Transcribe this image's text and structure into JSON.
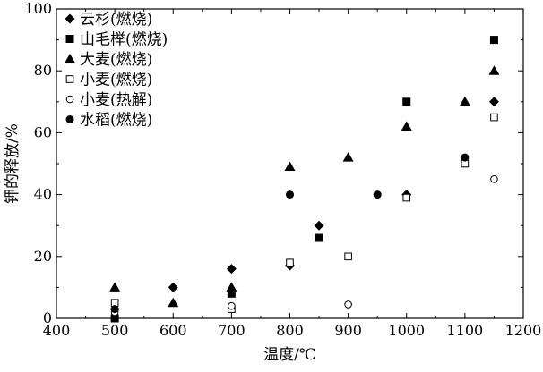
{
  "chart_data": {
    "type": "scatter",
    "xlabel": "温度/℃",
    "ylabel": "钾的释放/%",
    "xlim": [
      400,
      1200
    ],
    "ylim": [
      0,
      100
    ],
    "xticks": [
      400,
      500,
      600,
      700,
      800,
      900,
      1000,
      1100,
      1200
    ],
    "yticks": [
      0,
      20,
      40,
      60,
      80,
      100
    ],
    "grid": false,
    "legend_position": "top-left",
    "series": [
      {
        "name": "云杉(燃烧)",
        "marker": "diamond-filled",
        "points": [
          [
            500,
            3
          ],
          [
            600,
            10
          ],
          [
            700,
            16
          ],
          [
            800,
            17
          ],
          [
            850,
            30
          ],
          [
            1000,
            40
          ],
          [
            1150,
            70
          ]
        ]
      },
      {
        "name": "山毛榉(燃烧)",
        "marker": "square-filled",
        "points": [
          [
            500,
            0
          ],
          [
            700,
            8
          ],
          [
            850,
            26
          ],
          [
            1000,
            70
          ],
          [
            1150,
            90
          ]
        ]
      },
      {
        "name": "大麦(燃烧)",
        "marker": "triangle-filled",
        "points": [
          [
            500,
            10
          ],
          [
            600,
            5
          ],
          [
            700,
            10
          ],
          [
            800,
            49
          ],
          [
            900,
            52
          ],
          [
            1000,
            62
          ],
          [
            1100,
            70
          ],
          [
            1150,
            80
          ]
        ]
      },
      {
        "name": "小麦(燃烧)",
        "marker": "square-open",
        "points": [
          [
            500,
            5
          ],
          [
            700,
            3
          ],
          [
            800,
            18
          ],
          [
            900,
            20
          ],
          [
            1000,
            39
          ],
          [
            1100,
            50
          ],
          [
            1150,
            65
          ]
        ]
      },
      {
        "name": "小麦(热解)",
        "marker": "circle-open",
        "points": [
          [
            500,
            2
          ],
          [
            700,
            4
          ],
          [
            900,
            4.5
          ],
          [
            1150,
            45
          ]
        ]
      },
      {
        "name": "水稻(燃烧)",
        "marker": "circle-filled",
        "points": [
          [
            500,
            3
          ],
          [
            800,
            40
          ],
          [
            950,
            40
          ],
          [
            1100,
            52
          ]
        ]
      }
    ]
  }
}
